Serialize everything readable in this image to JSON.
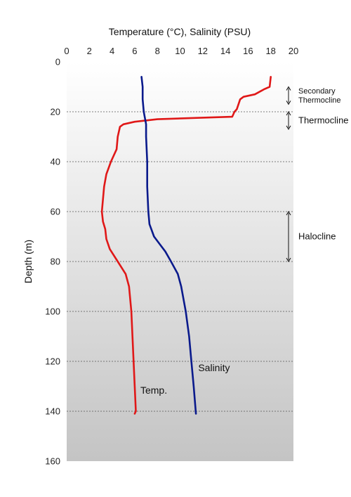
{
  "chart_data": {
    "type": "line",
    "orientation": "profile",
    "title": "",
    "xlabel": "Temperature (°C), Salinity (PSU)",
    "ylabel": "Depth (m)",
    "xlim": [
      0,
      20
    ],
    "ylim": [
      0,
      160
    ],
    "x_ticks": [
      "0",
      "2",
      "4",
      "6",
      "8",
      "10",
      "12",
      "14",
      "16",
      "18",
      "20"
    ],
    "y_ticks": [
      "0",
      "20",
      "40",
      "60",
      "80",
      "100",
      "120",
      "140",
      "160"
    ],
    "x_axis_position": "top",
    "y_axis_inverted": true,
    "grid": "horizontal dashed",
    "background": "gradient white to grey",
    "series": [
      {
        "name": "Temp.",
        "color": "#e01818",
        "points": [
          {
            "depth": 6,
            "value": 18.0
          },
          {
            "depth": 10,
            "value": 17.9
          },
          {
            "depth": 11,
            "value": 17.4
          },
          {
            "depth": 13,
            "value": 16.6
          },
          {
            "depth": 14,
            "value": 15.6
          },
          {
            "depth": 15,
            "value": 15.3
          },
          {
            "depth": 19,
            "value": 15.0
          },
          {
            "depth": 20,
            "value": 14.8
          },
          {
            "depth": 22,
            "value": 14.6
          },
          {
            "depth": 22.5,
            "value": 11.0
          },
          {
            "depth": 23,
            "value": 8.0
          },
          {
            "depth": 24,
            "value": 6.0
          },
          {
            "depth": 25,
            "value": 5.0
          },
          {
            "depth": 26,
            "value": 4.7
          },
          {
            "depth": 30,
            "value": 4.5
          },
          {
            "depth": 35,
            "value": 4.4
          },
          {
            "depth": 40,
            "value": 3.9
          },
          {
            "depth": 45,
            "value": 3.5
          },
          {
            "depth": 50,
            "value": 3.3
          },
          {
            "depth": 55,
            "value": 3.2
          },
          {
            "depth": 60,
            "value": 3.1
          },
          {
            "depth": 64,
            "value": 3.2
          },
          {
            "depth": 67,
            "value": 3.4
          },
          {
            "depth": 71,
            "value": 3.5
          },
          {
            "depth": 75,
            "value": 3.8
          },
          {
            "depth": 80,
            "value": 4.5
          },
          {
            "depth": 85,
            "value": 5.2
          },
          {
            "depth": 90,
            "value": 5.5
          },
          {
            "depth": 100,
            "value": 5.7
          },
          {
            "depth": 110,
            "value": 5.8
          },
          {
            "depth": 120,
            "value": 5.9
          },
          {
            "depth": 130,
            "value": 6.0
          },
          {
            "depth": 140,
            "value": 6.1
          },
          {
            "depth": 141,
            "value": 6.0
          }
        ]
      },
      {
        "name": "Salinity",
        "color": "#0a1a8c",
        "points": [
          {
            "depth": 6,
            "value": 6.6
          },
          {
            "depth": 10,
            "value": 6.7
          },
          {
            "depth": 15,
            "value": 6.7
          },
          {
            "depth": 20,
            "value": 6.8
          },
          {
            "depth": 25,
            "value": 7.0
          },
          {
            "depth": 30,
            "value": 7.0
          },
          {
            "depth": 40,
            "value": 7.1
          },
          {
            "depth": 50,
            "value": 7.1
          },
          {
            "depth": 60,
            "value": 7.2
          },
          {
            "depth": 65,
            "value": 7.3
          },
          {
            "depth": 70,
            "value": 7.7
          },
          {
            "depth": 73,
            "value": 8.2
          },
          {
            "depth": 76,
            "value": 8.7
          },
          {
            "depth": 80,
            "value": 9.2
          },
          {
            "depth": 85,
            "value": 9.8
          },
          {
            "depth": 90,
            "value": 10.1
          },
          {
            "depth": 100,
            "value": 10.5
          },
          {
            "depth": 110,
            "value": 10.8
          },
          {
            "depth": 120,
            "value": 11.0
          },
          {
            "depth": 130,
            "value": 11.2
          },
          {
            "depth": 141,
            "value": 11.4
          }
        ]
      }
    ],
    "series_labels": [
      {
        "text": "Salinity",
        "value": 11.6,
        "depth": 124
      },
      {
        "text": "Temp.",
        "value": 6.5,
        "depth": 133
      }
    ],
    "annotations": [
      {
        "lines": [
          "Secondary",
          "Thermocline"
        ],
        "range": [
          10,
          17
        ]
      },
      {
        "lines": [
          "Thermocline"
        ],
        "range": [
          20,
          27
        ]
      },
      {
        "lines": [
          "Halocline"
        ],
        "range": [
          60,
          80
        ]
      }
    ]
  }
}
